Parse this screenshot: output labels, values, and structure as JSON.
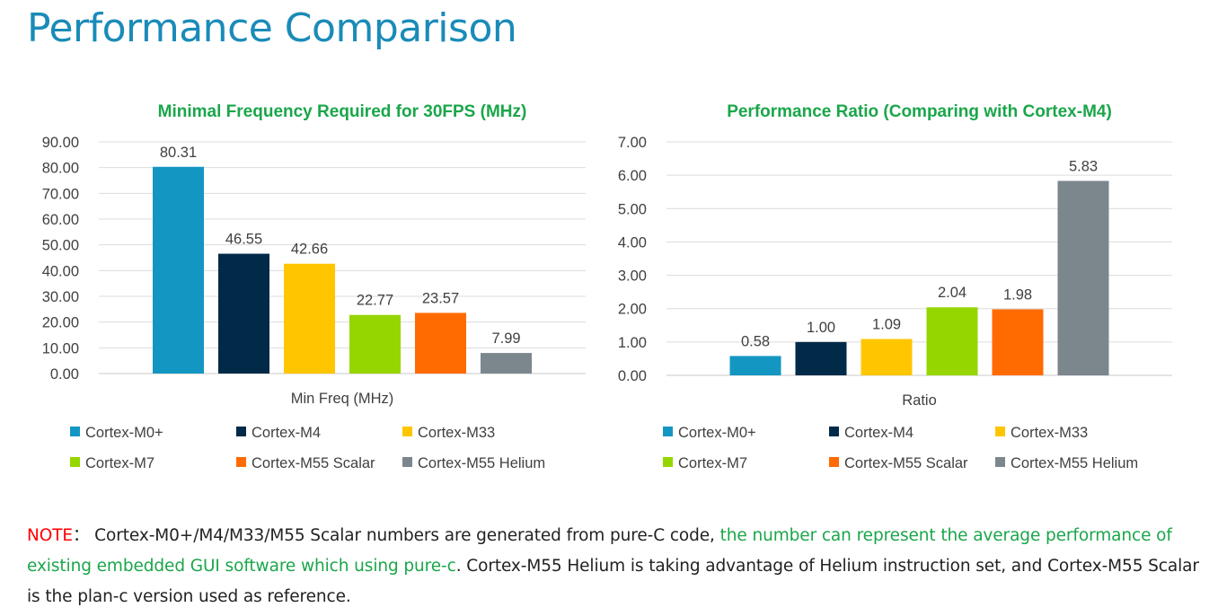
{
  "page": {
    "title": "Performance Comparison"
  },
  "chart_data": [
    {
      "type": "bar",
      "title": "Minimal Frequency Required for 30FPS (MHz)",
      "xlabel": "Min Freq (MHz)",
      "ylabel": "",
      "ylim": [
        0,
        90
      ],
      "yticks": [
        "0.00",
        "10.00",
        "20.00",
        "30.00",
        "40.00",
        "50.00",
        "60.00",
        "70.00",
        "80.00",
        "90.00"
      ],
      "grid": true,
      "legend_position": "bottom",
      "series": [
        {
          "name": "Cortex-M0+",
          "value": 80.31,
          "label": "80.31",
          "color": "#1496c2"
        },
        {
          "name": "Cortex-M4",
          "value": 46.55,
          "label": "46.55",
          "color": "#012a48"
        },
        {
          "name": "Cortex-M33",
          "value": 42.66,
          "label": "42.66",
          "color": "#ffc600"
        },
        {
          "name": "Cortex-M7",
          "value": 22.77,
          "label": "22.77",
          "color": "#95d600"
        },
        {
          "name": "Cortex-M55 Scalar",
          "value": 23.57,
          "label": "23.57",
          "color": "#ff6b00"
        },
        {
          "name": "Cortex-M55 Helium",
          "value": 7.99,
          "label": "7.99",
          "color": "#7c868d"
        }
      ]
    },
    {
      "type": "bar",
      "title": "Performance Ratio (Comparing with Cortex-M4)",
      "xlabel": "Ratio",
      "ylabel": "",
      "ylim": [
        0,
        7
      ],
      "yticks": [
        "0.00",
        "1.00",
        "2.00",
        "3.00",
        "4.00",
        "5.00",
        "6.00",
        "7.00"
      ],
      "grid": true,
      "legend_position": "bottom",
      "series": [
        {
          "name": "Cortex-M0+",
          "value": 0.58,
          "label": "0.58",
          "color": "#1496c2"
        },
        {
          "name": "Cortex-M4",
          "value": 1.0,
          "label": "1.00",
          "color": "#012a48"
        },
        {
          "name": "Cortex-M33",
          "value": 1.09,
          "label": "1.09",
          "color": "#ffc600"
        },
        {
          "name": "Cortex-M7",
          "value": 2.04,
          "label": "2.04",
          "color": "#95d600"
        },
        {
          "name": "Cortex-M55 Scalar",
          "value": 1.98,
          "label": "1.98",
          "color": "#ff6b00"
        },
        {
          "name": "Cortex-M55 Helium",
          "value": 5.83,
          "label": "5.83",
          "color": "#7c868d"
        }
      ]
    }
  ],
  "note": {
    "prefix": "NOTE",
    "colon": "：",
    "text1": " Cortex-M0+/M4/M33/M55 Scalar numbers are generated from pure-C code, ",
    "highlight": "the number can represent the average performance of existing embedded GUI software which using pure-c",
    "text2": ". Cortex-M55 Helium is taking advantage of Helium instruction set, and Cortex-M55 Scalar is the plan-c version used as reference."
  },
  "colors": {
    "title": "#1a8bb8",
    "chart_title": "#1aa64a",
    "note_red": "#ff0000",
    "note_green": "#1aa64a"
  }
}
